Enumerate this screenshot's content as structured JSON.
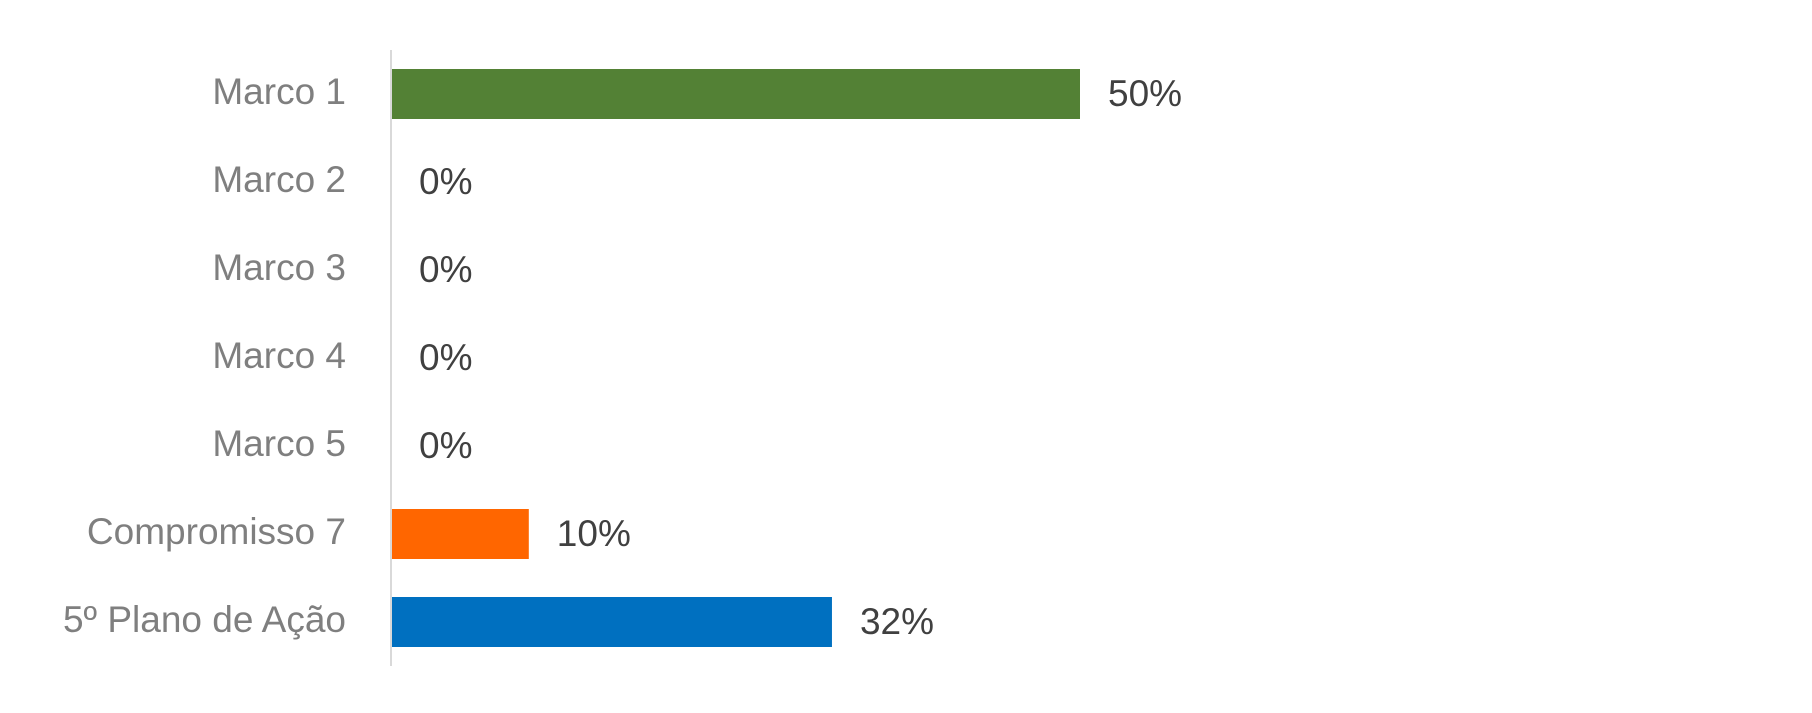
{
  "chart_data": {
    "type": "bar",
    "orientation": "horizontal",
    "categories": [
      "Marco 1",
      "Marco 2",
      "Marco 3",
      "Marco 4",
      "Marco 5",
      "Compromisso 7",
      "5º Plano de Ação"
    ],
    "values": [
      50,
      0,
      0,
      0,
      0,
      10,
      32
    ],
    "value_labels": [
      "50%",
      "0%",
      "0%",
      "0%",
      "0%",
      "10%",
      "32%"
    ],
    "colors": [
      "#538135",
      "#538135",
      "#538135",
      "#538135",
      "#538135",
      "#ff6600",
      "#0070c0"
    ]
  }
}
